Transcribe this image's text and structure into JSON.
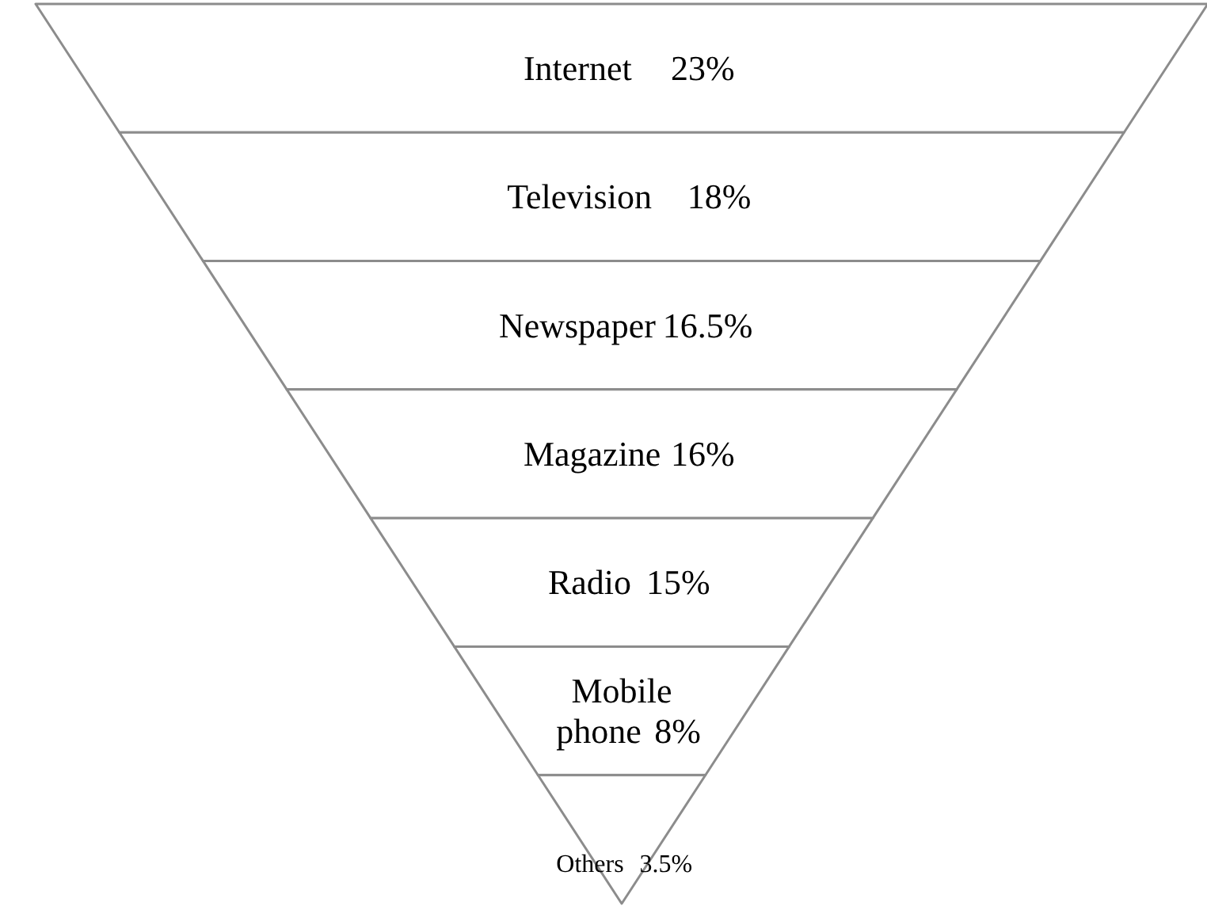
{
  "chart_data": {
    "type": "other",
    "categories": [
      "Internet",
      "Television",
      "Newspaper",
      "Magazine",
      "Radio",
      "Mobile phone",
      "Others"
    ],
    "values": [
      23,
      18,
      16.5,
      16,
      15,
      8,
      3.5
    ],
    "value_labels": [
      "23%",
      "18%",
      "16.5%",
      "16%",
      "15%",
      "8%",
      "3.5%"
    ],
    "colors": [
      "#ffffff",
      "#ffffff",
      "#ffffff",
      "#ffffff",
      "#ffffff",
      "#ffffff",
      "#ffffff"
    ]
  }
}
